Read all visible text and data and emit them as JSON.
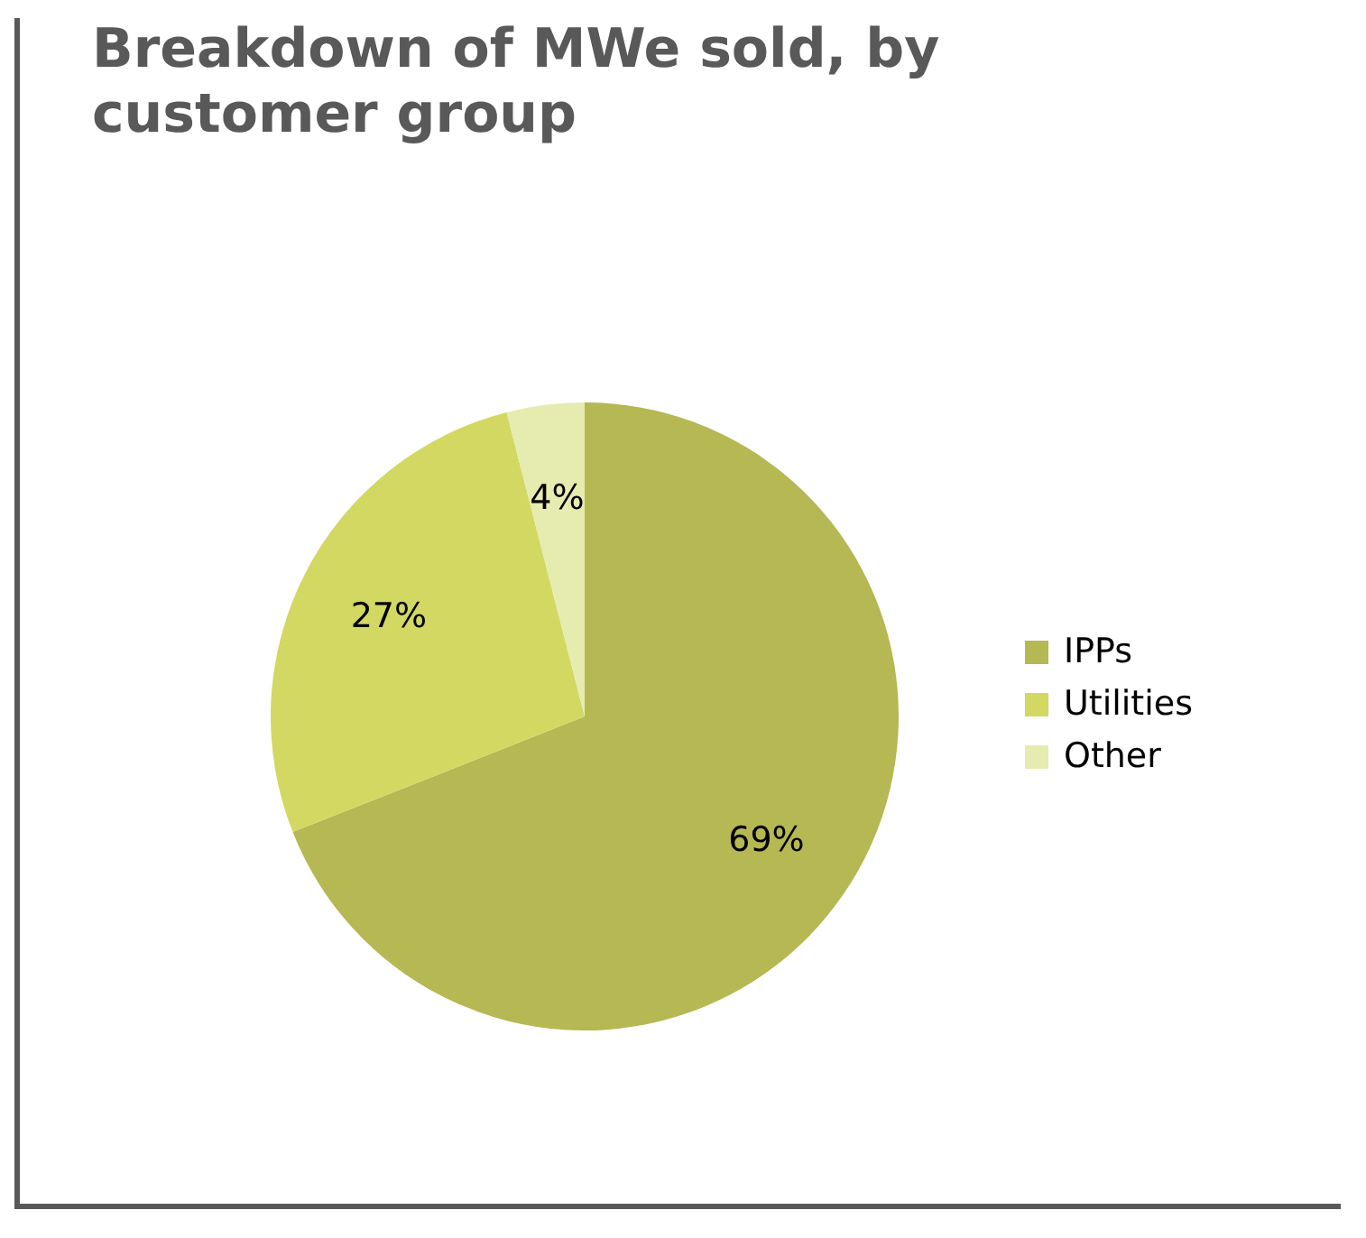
{
  "chart_data": {
    "type": "pie",
    "title": "Breakdown of MWe sold, by customer group",
    "categories": [
      "IPPs",
      "Utilities",
      "Other"
    ],
    "values": [
      69,
      27,
      4
    ],
    "colors": [
      "#b5b853",
      "#d3d862",
      "#e6ebb0"
    ],
    "value_labels": [
      "69%",
      "27%",
      "4%"
    ],
    "legend": "right"
  }
}
